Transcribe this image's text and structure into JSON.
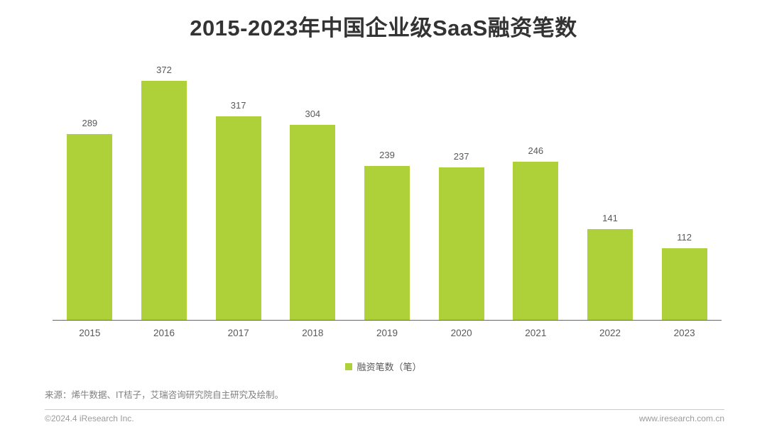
{
  "chart_data": {
    "type": "bar",
    "title": "2015-2023年中国企业级SaaS融资笔数",
    "categories": [
      "2015",
      "2016",
      "2017",
      "2018",
      "2019",
      "2020",
      "2021",
      "2022",
      "2023"
    ],
    "series": [
      {
        "name": "融资笔数（笔）",
        "values": [
          289,
          372,
          317,
          304,
          239,
          237,
          246,
          141,
          112
        ]
      }
    ],
    "xlabel": "",
    "ylabel": "",
    "ylim": [
      0,
      400
    ],
    "grid": false,
    "legend_position": "bottom-center",
    "value_labels_shown": true,
    "bar_color": "#aed038"
  },
  "legend": {
    "label": "融资笔数（笔）",
    "swatch_color": "#aed038"
  },
  "notes": {
    "source": "来源：烯牛数据、IT桔子，艾瑞咨询研究院自主研究及绘制。"
  },
  "footer": {
    "copyright": "©2024.4 iResearch Inc.",
    "website": "www.iresearch.com.cn"
  },
  "colors": {
    "bar": "#aed038",
    "title_text": "#333333",
    "label_text": "#595959",
    "axis_line": "#666666",
    "source_text": "#7f7f7f",
    "footer_text": "#9b9b9b",
    "divider": "#cccccc"
  }
}
